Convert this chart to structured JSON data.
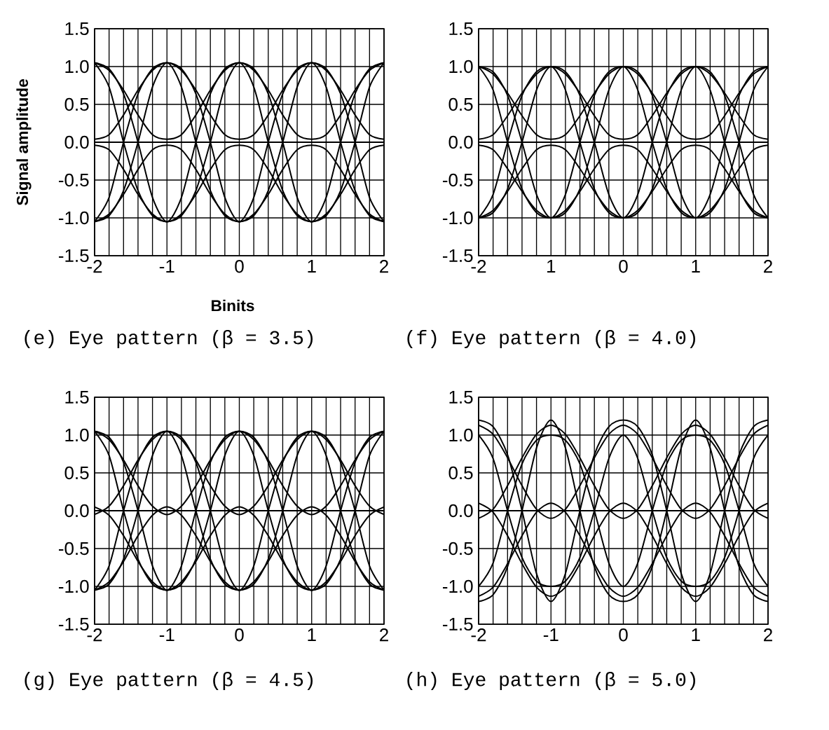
{
  "chart_data": [
    {
      "type": "line",
      "title": "(e) Eye pattern (β = 3.5)",
      "xlabel": "Binits",
      "ylabel": "Signal amplitude",
      "grid": true,
      "x": [
        -2,
        -1.8,
        -1.6,
        -1.4,
        -1.2,
        -1,
        -0.8,
        -0.6,
        -0.4,
        -0.2,
        0,
        0.2,
        0.4,
        0.6,
        0.8,
        1,
        1.2,
        1.4,
        1.6,
        1.8,
        2
      ],
      "xlim": [
        -2,
        2
      ],
      "ylim": [
        -1.5,
        1.5
      ],
      "xticks": [
        -2,
        {
          "value": -1.8,
          "label": null
        },
        {
          "value": -1.6,
          "label": null
        },
        {
          "value": -1.4,
          "label": null
        },
        {
          "value": -1.2,
          "label": null
        },
        -1,
        {
          "value": -0.8,
          "label": null
        },
        {
          "value": -0.6,
          "label": null
        },
        {
          "value": -0.4,
          "label": null
        },
        {
          "value": -0.2,
          "label": null
        },
        0,
        {
          "value": 0.2,
          "label": null
        },
        {
          "value": 0.4,
          "label": null
        },
        {
          "value": 0.6,
          "label": null
        },
        {
          "value": 0.8,
          "label": null
        },
        1,
        {
          "value": 1.2,
          "label": null
        },
        {
          "value": 1.4,
          "label": null
        },
        {
          "value": 1.6,
          "label": null
        },
        {
          "value": 1.8,
          "label": null
        },
        2
      ],
      "yticks": [
        -1.5,
        {
          "value": -1,
          "label": "-1.0"
        },
        -0.5,
        {
          "value": 0,
          "label": "0.0"
        },
        0.5,
        {
          "value": 1,
          "label": "1.0"
        },
        1.5
      ],
      "series": [
        {
          "color": "#000000",
          "values": [
            0,
            0,
            0,
            0,
            0,
            0,
            0,
            0,
            0,
            0,
            0,
            0,
            0,
            0,
            0,
            0,
            0,
            0,
            0,
            0,
            0
          ]
        },
        {
          "color": "#000000",
          "values": [
            1.05,
            0.97,
            0.64,
            0,
            -0.73,
            -1.05,
            -0.73,
            0,
            0.64,
            0.97,
            1.05,
            0.97,
            0.64,
            0,
            -0.73,
            -1.05,
            -0.73,
            0,
            0.64,
            0.97,
            1.05
          ]
        },
        {
          "color": "#000000",
          "values": [
            1.05,
            0.73,
            0,
            -0.64,
            -0.97,
            -1.05,
            -0.97,
            -0.64,
            0,
            0.73,
            1.05,
            0.73,
            0,
            -0.64,
            -0.97,
            -1.05,
            -0.97,
            -0.64,
            0,
            0.73,
            1.05
          ]
        },
        {
          "color": "#000000",
          "values": [
            -1.05,
            -0.73,
            0,
            0.64,
            0.97,
            1.05,
            0.97,
            0.64,
            0,
            -0.73,
            -1.05,
            -0.73,
            0,
            0.64,
            0.97,
            1.05,
            0.97,
            0.64,
            0,
            -0.73,
            -1.05
          ]
        },
        {
          "color": "#000000",
          "values": [
            -1.05,
            -0.97,
            -0.64,
            0,
            0.73,
            1.05,
            0.73,
            0,
            -0.64,
            -0.97,
            -1.05,
            -0.97,
            -0.64,
            0,
            0.73,
            1.05,
            0.73,
            0,
            -0.64,
            -0.97,
            -1.05
          ]
        },
        {
          "color": "#000000",
          "values": [
            1.05,
            0.95,
            0.69,
            0.36,
            0.1,
            0.04,
            0.1,
            0.36,
            0.69,
            0.95,
            1.05,
            0.95,
            0.69,
            0.36,
            0.1,
            0.04,
            0.1,
            0.36,
            0.69,
            0.95,
            1.05
          ]
        },
        {
          "color": "#000000",
          "values": [
            0.04,
            0.1,
            0.36,
            0.69,
            0.95,
            1.05,
            0.95,
            0.69,
            0.36,
            0.1,
            0.04,
            0.1,
            0.36,
            0.69,
            0.95,
            1.05,
            0.95,
            0.69,
            0.36,
            0.1,
            0.04
          ]
        },
        {
          "color": "#000000",
          "values": [
            -1.05,
            -0.95,
            -0.69,
            -0.36,
            -0.1,
            -0.04,
            -0.1,
            -0.36,
            -0.69,
            -0.95,
            -1.05,
            -0.95,
            -0.69,
            -0.36,
            -0.1,
            -0.04,
            -0.1,
            -0.36,
            -0.69,
            -0.95,
            -1.05
          ]
        },
        {
          "color": "#000000",
          "values": [
            -0.04,
            -0.1,
            -0.36,
            -0.69,
            -0.95,
            -1.05,
            -0.95,
            -0.69,
            -0.36,
            -0.1,
            -0.04,
            -0.1,
            -0.36,
            -0.69,
            -0.95,
            -1.05,
            -0.95,
            -0.69,
            -0.36,
            -0.1,
            -0.04
          ]
        }
      ]
    },
    {
      "type": "line",
      "title": "(f) Eye pattern (β = 4.0)",
      "grid": true,
      "x": [
        -2,
        -1.8,
        -1.6,
        -1.4,
        -1.2,
        -1,
        -0.8,
        -0.6,
        -0.4,
        -0.2,
        0,
        0.2,
        0.4,
        0.6,
        0.8,
        1,
        1.2,
        1.4,
        1.6,
        1.8,
        2
      ],
      "xlim": [
        -2,
        2
      ],
      "ylim": [
        -1.5,
        1.5
      ],
      "xticks": [
        -2,
        {
          "value": -1.8,
          "label": null
        },
        {
          "value": -1.6,
          "label": null
        },
        {
          "value": -1.4,
          "label": null
        },
        {
          "value": -1.2,
          "label": null
        },
        {
          "value": -1,
          "label": "1"
        },
        {
          "value": -0.8,
          "label": null
        },
        {
          "value": -0.6,
          "label": null
        },
        {
          "value": -0.4,
          "label": null
        },
        {
          "value": -0.2,
          "label": null
        },
        0,
        {
          "value": 0.2,
          "label": null
        },
        {
          "value": 0.4,
          "label": null
        },
        {
          "value": 0.6,
          "label": null
        },
        {
          "value": 0.8,
          "label": null
        },
        1,
        {
          "value": 1.2,
          "label": null
        },
        {
          "value": 1.4,
          "label": null
        },
        {
          "value": 1.6,
          "label": null
        },
        {
          "value": 1.8,
          "label": null
        },
        2
      ],
      "yticks": [
        -1.5,
        {
          "value": -1,
          "label": "-1.0"
        },
        -0.5,
        {
          "value": 0,
          "label": "0.0"
        },
        0.5,
        {
          "value": 1,
          "label": "1.0"
        },
        1.5
      ],
      "series": [
        {
          "color": "#000000",
          "values": [
            0,
            0,
            0,
            0,
            0,
            0,
            0,
            0,
            0,
            0,
            0,
            0,
            0,
            0,
            0,
            0,
            0,
            0,
            0,
            0,
            0
          ]
        },
        {
          "color": "#000000",
          "values": [
            1,
            0.93,
            0.62,
            0,
            -0.69,
            -1,
            -0.69,
            0,
            0.62,
            0.93,
            1,
            0.93,
            0.62,
            0,
            -0.69,
            -1,
            -0.69,
            0,
            0.62,
            0.93,
            1
          ]
        },
        {
          "color": "#000000",
          "values": [
            1,
            0.69,
            0,
            -0.62,
            -0.93,
            -1,
            -0.93,
            -0.62,
            0,
            0.69,
            1,
            0.69,
            0,
            -0.62,
            -0.93,
            -1,
            -0.93,
            -0.62,
            0,
            0.69,
            1
          ]
        },
        {
          "color": "#000000",
          "values": [
            -1,
            -0.69,
            0,
            0.62,
            0.93,
            1,
            0.93,
            0.62,
            0,
            -0.69,
            -1,
            -0.69,
            0,
            0.62,
            0.93,
            1,
            0.93,
            0.62,
            0,
            -0.69,
            -1
          ]
        },
        {
          "color": "#000000",
          "values": [
            -1,
            -0.93,
            -0.62,
            0,
            0.69,
            1,
            0.69,
            0,
            -0.62,
            -0.93,
            -1,
            -0.93,
            -0.62,
            0,
            0.69,
            1,
            0.69,
            0,
            -0.62,
            -0.93,
            -1
          ]
        },
        {
          "color": "#000000",
          "values": [
            1,
            0.9,
            0.65,
            0.35,
            0.1,
            0.04,
            0.1,
            0.35,
            0.65,
            0.9,
            1,
            0.9,
            0.65,
            0.35,
            0.1,
            0.04,
            0.1,
            0.35,
            0.65,
            0.9,
            1
          ]
        },
        {
          "color": "#000000",
          "values": [
            0.04,
            0.1,
            0.35,
            0.65,
            0.9,
            1,
            0.9,
            0.65,
            0.35,
            0.1,
            0.04,
            0.1,
            0.35,
            0.65,
            0.9,
            1,
            0.9,
            0.65,
            0.35,
            0.1,
            0.04
          ]
        },
        {
          "color": "#000000",
          "values": [
            -1,
            -0.9,
            -0.65,
            -0.35,
            -0.1,
            -0.04,
            -0.1,
            -0.35,
            -0.65,
            -0.9,
            -1,
            -0.9,
            -0.65,
            -0.35,
            -0.1,
            -0.04,
            -0.1,
            -0.35,
            -0.65,
            -0.9,
            -1
          ]
        },
        {
          "color": "#000000",
          "values": [
            -0.04,
            -0.1,
            -0.35,
            -0.65,
            -0.9,
            -1,
            -0.9,
            -0.65,
            -0.35,
            -0.1,
            -0.04,
            -0.1,
            -0.35,
            -0.65,
            -0.9,
            -1,
            -0.9,
            -0.65,
            -0.35,
            -0.1,
            -0.04
          ]
        }
      ]
    },
    {
      "type": "line",
      "title": "(g) Eye pattern (β = 4.5)",
      "grid": true,
      "x": [
        -2,
        -1.8,
        -1.6,
        -1.4,
        -1.2,
        -1,
        -0.8,
        -0.6,
        -0.4,
        -0.2,
        0,
        0.2,
        0.4,
        0.6,
        0.8,
        1,
        1.2,
        1.4,
        1.6,
        1.8,
        2
      ],
      "xlim": [
        -2,
        2
      ],
      "ylim": [
        -1.5,
        1.5
      ],
      "xticks": [
        -2,
        {
          "value": -1.8,
          "label": null
        },
        {
          "value": -1.6,
          "label": null
        },
        {
          "value": -1.4,
          "label": null
        },
        {
          "value": -1.2,
          "label": null
        },
        -1,
        {
          "value": -0.8,
          "label": null
        },
        {
          "value": -0.6,
          "label": null
        },
        {
          "value": -0.4,
          "label": null
        },
        {
          "value": -0.2,
          "label": null
        },
        0,
        {
          "value": 0.2,
          "label": null
        },
        {
          "value": 0.4,
          "label": null
        },
        {
          "value": 0.6,
          "label": null
        },
        {
          "value": 0.8,
          "label": null
        },
        1,
        {
          "value": 1.2,
          "label": null
        },
        {
          "value": 1.4,
          "label": null
        },
        {
          "value": 1.6,
          "label": null
        },
        {
          "value": 1.8,
          "label": null
        },
        2
      ],
      "yticks": [
        -1.5,
        {
          "value": -1,
          "label": "-1.0"
        },
        -0.5,
        {
          "value": 0,
          "label": "0.0"
        },
        0.5,
        {
          "value": 1,
          "label": "1.0"
        },
        1.5
      ],
      "series": [
        {
          "color": "#000000",
          "values": [
            0,
            0,
            0,
            0,
            0,
            0,
            0,
            0,
            0,
            0,
            0,
            0,
            0,
            0,
            0,
            0,
            0,
            0,
            0,
            0,
            0
          ]
        },
        {
          "color": "#000000",
          "values": [
            1.05,
            0.97,
            0.64,
            0,
            -0.73,
            -1.05,
            -0.73,
            0,
            0.64,
            0.97,
            1.05,
            0.97,
            0.64,
            0,
            -0.73,
            -1.05,
            -0.73,
            0,
            0.64,
            0.97,
            1.05
          ]
        },
        {
          "color": "#000000",
          "values": [
            1.05,
            0.73,
            0,
            -0.64,
            -0.97,
            -1.05,
            -0.97,
            -0.64,
            0,
            0.73,
            1.05,
            0.73,
            0,
            -0.64,
            -0.97,
            -1.05,
            -0.97,
            -0.64,
            0,
            0.73,
            1.05
          ]
        },
        {
          "color": "#000000",
          "values": [
            -1.05,
            -0.73,
            0,
            0.64,
            0.97,
            1.05,
            0.97,
            0.64,
            0,
            -0.73,
            -1.05,
            -0.73,
            0,
            0.64,
            0.97,
            1.05,
            0.97,
            0.64,
            0,
            -0.73,
            -1.05
          ]
        },
        {
          "color": "#000000",
          "values": [
            -1.05,
            -0.97,
            -0.64,
            0,
            0.73,
            1.05,
            0.73,
            0,
            -0.64,
            -0.97,
            -1.05,
            -0.97,
            -0.64,
            0,
            0.73,
            1.05,
            0.73,
            0,
            -0.64,
            -0.97,
            -1.05
          ]
        },
        {
          "color": "#000000",
          "values": [
            1.05,
            0.94,
            0.67,
            0.33,
            0.06,
            -0.05,
            0.06,
            0.33,
            0.67,
            0.94,
            1.05,
            0.94,
            0.67,
            0.33,
            0.06,
            -0.05,
            0.06,
            0.33,
            0.67,
            0.94,
            1.05
          ]
        },
        {
          "color": "#000000",
          "values": [
            -0.05,
            0.06,
            0.33,
            0.67,
            0.94,
            1.05,
            0.94,
            0.67,
            0.33,
            0.06,
            -0.05,
            0.06,
            0.33,
            0.67,
            0.94,
            1.05,
            0.94,
            0.67,
            0.33,
            0.06,
            -0.05
          ]
        },
        {
          "color": "#000000",
          "values": [
            -1.05,
            -0.94,
            -0.67,
            -0.33,
            -0.06,
            0.05,
            -0.06,
            -0.33,
            -0.67,
            -0.94,
            -1.05,
            -0.94,
            -0.67,
            -0.33,
            -0.06,
            0.05,
            -0.06,
            -0.33,
            -0.67,
            -0.94,
            -1.05
          ]
        },
        {
          "color": "#000000",
          "values": [
            0.05,
            -0.06,
            -0.33,
            -0.67,
            -0.94,
            -1.05,
            -0.94,
            -0.67,
            -0.33,
            -0.06,
            0.05,
            -0.06,
            -0.33,
            -0.67,
            -0.94,
            -1.05,
            -0.94,
            -0.67,
            -0.33,
            -0.06,
            0.05
          ]
        }
      ]
    },
    {
      "type": "line",
      "title": "(h) Eye pattern (β = 5.0)",
      "grid": true,
      "x": [
        -2,
        -1.8,
        -1.6,
        -1.4,
        -1.2,
        -1,
        -0.8,
        -0.6,
        -0.4,
        -0.2,
        0,
        0.2,
        0.4,
        0.6,
        0.8,
        1,
        1.2,
        1.4,
        1.6,
        1.8,
        2
      ],
      "xlim": [
        -2,
        2
      ],
      "ylim": [
        -1.5,
        1.5
      ],
      "xticks": [
        -2,
        {
          "value": -1.8,
          "label": null
        },
        {
          "value": -1.6,
          "label": null
        },
        {
          "value": -1.4,
          "label": null
        },
        {
          "value": -1.2,
          "label": null
        },
        -1,
        {
          "value": -0.8,
          "label": null
        },
        {
          "value": -0.6,
          "label": null
        },
        {
          "value": -0.4,
          "label": null
        },
        {
          "value": -0.2,
          "label": null
        },
        0,
        {
          "value": 0.2,
          "label": null
        },
        {
          "value": 0.4,
          "label": null
        },
        {
          "value": 0.6,
          "label": null
        },
        {
          "value": 0.8,
          "label": null
        },
        1,
        {
          "value": 1.2,
          "label": null
        },
        {
          "value": 1.4,
          "label": null
        },
        {
          "value": 1.6,
          "label": null
        },
        {
          "value": 1.8,
          "label": null
        },
        2
      ],
      "yticks": [
        -1.5,
        {
          "value": -1,
          "label": "-1.0"
        },
        -0.5,
        {
          "value": 0,
          "label": "0.0"
        },
        0.5,
        {
          "value": 1,
          "label": "1.0"
        },
        1.5
      ],
      "series": [
        {
          "color": "#000000",
          "values": [
            0,
            0,
            0,
            0,
            0,
            0,
            0,
            0,
            0,
            0,
            0,
            0,
            0,
            0,
            0,
            0,
            0,
            0,
            0,
            0,
            0
          ]
        },
        {
          "color": "#000000",
          "values": [
            1.2,
            1.11,
            0.74,
            0,
            -0.83,
            -1.2,
            -0.83,
            0,
            0.74,
            1.11,
            1.2,
            1.11,
            0.74,
            0,
            -0.83,
            -1.2,
            -0.83,
            0,
            0.74,
            1.11,
            1.2
          ]
        },
        {
          "color": "#000000",
          "values": [
            -1.2,
            -1.11,
            -0.74,
            0,
            0.83,
            1.2,
            0.83,
            0,
            -0.74,
            -1.11,
            -1.2,
            -1.11,
            -0.74,
            0,
            0.83,
            1.2,
            0.83,
            0,
            -0.74,
            -1.11,
            -1.2
          ]
        },
        {
          "color": "#000000",
          "values": [
            1,
            0.69,
            0,
            -0.62,
            -0.93,
            -1,
            -0.93,
            -0.62,
            0,
            0.69,
            1,
            0.69,
            0,
            -0.62,
            -0.93,
            -1,
            -0.93,
            -0.62,
            0,
            0.69,
            1
          ]
        },
        {
          "color": "#000000",
          "values": [
            -1,
            -0.69,
            0,
            0.62,
            0.93,
            1,
            0.93,
            0.62,
            0,
            -0.69,
            -1,
            -0.69,
            0,
            0.62,
            0.93,
            1,
            0.93,
            0.62,
            0,
            -0.69,
            -1
          ]
        },
        {
          "color": "#000000",
          "values": [
            1.13,
            1.01,
            0.7,
            0.33,
            0.02,
            -0.1,
            0.02,
            0.33,
            0.7,
            1.01,
            1.13,
            1.01,
            0.7,
            0.33,
            0.02,
            -0.1,
            0.02,
            0.33,
            0.7,
            1.01,
            1.13
          ]
        },
        {
          "color": "#000000",
          "values": [
            -0.1,
            0.02,
            0.33,
            0.7,
            1.01,
            1.13,
            1.01,
            0.7,
            0.33,
            0.02,
            -0.1,
            0.02,
            0.33,
            0.7,
            1.01,
            1.13,
            1.01,
            0.7,
            0.33,
            0.02,
            -0.1
          ]
        },
        {
          "color": "#000000",
          "values": [
            -1.13,
            -1.01,
            -0.7,
            -0.33,
            -0.02,
            0.1,
            -0.02,
            -0.33,
            -0.7,
            -1.01,
            -1.13,
            -1.01,
            -0.7,
            -0.33,
            -0.02,
            0.1,
            -0.02,
            -0.33,
            -0.7,
            -1.01,
            -1.13
          ]
        },
        {
          "color": "#000000",
          "values": [
            0.1,
            -0.02,
            -0.33,
            -0.7,
            -1.01,
            -1.13,
            -1.01,
            -0.7,
            -0.33,
            -0.02,
            0.1,
            -0.02,
            -0.33,
            -0.7,
            -1.01,
            -1.13,
            -1.01,
            -0.7,
            -0.33,
            -0.02,
            0.1
          ]
        }
      ]
    }
  ]
}
